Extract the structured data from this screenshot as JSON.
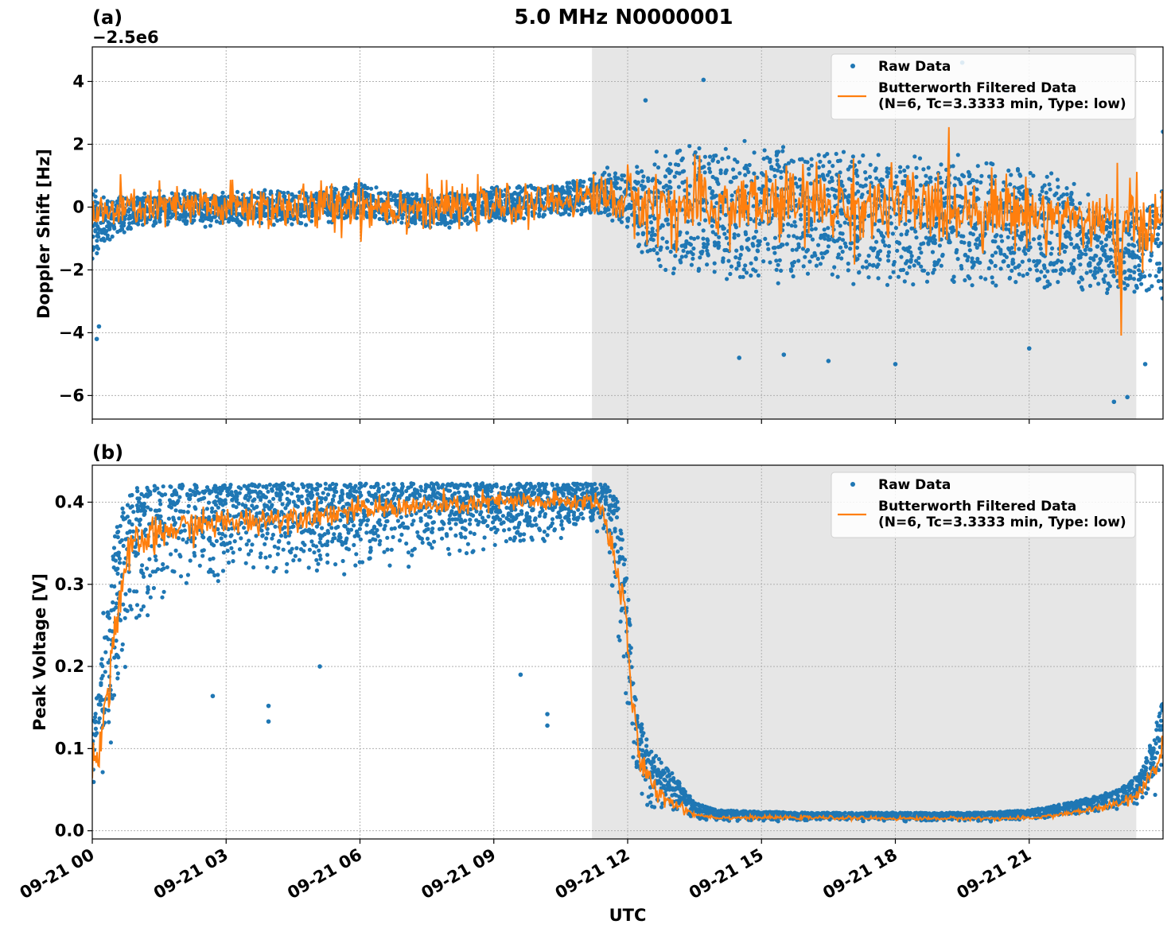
{
  "title": "5.0 MHz N0000001",
  "xlabel": "UTC",
  "colors": {
    "raw": "#1f77b4",
    "filtered": "#ff7f0e",
    "shade": "#e6e6e6",
    "grid": "#b0b0b0"
  },
  "chart_data": [
    {
      "type": "scatter",
      "panel_label": "(a)",
      "offset_label": "−2.5e6",
      "ylabel": "Doppler Shift [Hz]",
      "xlim_hours": [
        0,
        24
      ],
      "ylim": [
        -6.75,
        5.1
      ],
      "yticks": [
        4,
        2,
        0,
        -2,
        -4,
        -6
      ],
      "ytick_labels": [
        "4",
        "2",
        "0",
        "−2",
        "−4",
        "−6"
      ],
      "shaded_span_hours": [
        11.2,
        23.4
      ],
      "grid": true,
      "legend": {
        "placement": "top-right",
        "entries": [
          {
            "label": "Raw Data",
            "style": "marker",
            "series": "raw"
          },
          {
            "label": "Butterworth Filtered Data\n(N=6, Tc=3.3333 min, Type: low)",
            "style": "line",
            "series": "filtered"
          }
        ]
      },
      "series": [
        {
          "name": "Raw Data",
          "kind": "scatter",
          "envelope": {
            "x": [
              0,
              0.3,
              1,
              2,
              3,
              4,
              5,
              6,
              7,
              8,
              9,
              10,
              11,
              11.2,
              12,
              12.5,
              13,
              14,
              15,
              16,
              17,
              18,
              19,
              20,
              21,
              21.5,
              22,
              22.5,
              22.8,
              23,
              23.4,
              24
            ],
            "center": [
              -0.6,
              -0.4,
              -0.1,
              0.0,
              -0.1,
              0.0,
              0.0,
              0.2,
              -0.1,
              -0.1,
              0.1,
              0.2,
              0.3,
              0.5,
              0.3,
              -0.1,
              -0.1,
              0.0,
              -0.1,
              -0.2,
              -0.3,
              -0.4,
              -0.4,
              -0.5,
              -0.6,
              -0.7,
              -0.9,
              -1.1,
              -1.4,
              -1.6,
              -1.4,
              -1.2
            ],
            "spread": [
              1.4,
              0.8,
              0.6,
              0.6,
              0.6,
              0.6,
              0.6,
              0.6,
              0.6,
              0.6,
              0.6,
              0.6,
              0.6,
              0.7,
              1.1,
              1.9,
              2.2,
              2.3,
              2.3,
              2.3,
              2.3,
              2.3,
              2.3,
              2.2,
              2.1,
              2.0,
              1.8,
              1.6,
              1.5,
              1.5,
              1.7,
              1.9
            ]
          },
          "outliers": [
            {
              "x": 0.1,
              "y": -4.2
            },
            {
              "x": 0.15,
              "y": -3.8
            },
            {
              "x": 13.7,
              "y": 4.05
            },
            {
              "x": 22.9,
              "y": -6.2
            },
            {
              "x": 23.2,
              "y": -6.05
            },
            {
              "x": 19.5,
              "y": 4.6
            },
            {
              "x": 20.5,
              "y": 3.7
            },
            {
              "x": 14.5,
              "y": -4.8
            },
            {
              "x": 16.5,
              "y": -4.9
            },
            {
              "x": 18.0,
              "y": -5.0
            },
            {
              "x": 12.4,
              "y": 3.4
            },
            {
              "x": 15.5,
              "y": -4.7
            },
            {
              "x": 21.0,
              "y": -4.5
            },
            {
              "x": 23.6,
              "y": -5.0
            },
            {
              "x": 24.0,
              "y": 2.4
            }
          ]
        },
        {
          "name": "Butterworth Filtered Data (N=6, Tc=3.3333 min, Type: low)",
          "kind": "line",
          "envelope": {
            "x": [
              0,
              1,
              2,
              3,
              4,
              5,
              6,
              7,
              8,
              9,
              10,
              11,
              11.2,
              12,
              13,
              14,
              15,
              16,
              17,
              18,
              19,
              20,
              21,
              22,
              22.5,
              23,
              23.4,
              24
            ],
            "center": [
              -0.3,
              0.0,
              0.0,
              0.0,
              0.0,
              0.0,
              0.1,
              0.0,
              0.0,
              0.0,
              0.1,
              0.3,
              0.4,
              0.2,
              0.0,
              0.0,
              0.1,
              0.1,
              0.0,
              0.0,
              0.0,
              0.0,
              -0.2,
              -0.3,
              -0.5,
              -1.0,
              -0.6,
              -0.3
            ],
            "spread": [
              0.7,
              0.6,
              0.6,
              0.7,
              0.7,
              0.7,
              0.8,
              0.7,
              0.6,
              0.6,
              0.5,
              0.5,
              0.6,
              0.9,
              1.1,
              1.1,
              1.1,
              1.1,
              1.1,
              1.1,
              1.1,
              1.0,
              0.9,
              0.8,
              1.0,
              2.2,
              1.2,
              1.0
            ]
          }
        }
      ]
    },
    {
      "type": "scatter",
      "panel_label": "(b)",
      "ylabel": "Peak Voltage [V]",
      "xlim_hours": [
        0,
        24
      ],
      "ylim": [
        -0.01,
        0.445
      ],
      "yticks": [
        0.4,
        0.3,
        0.2,
        0.1,
        0.0
      ],
      "ytick_labels": [
        "0.4",
        "0.3",
        "0.2",
        "0.1",
        "0.0"
      ],
      "xticks_hours": [
        0,
        3,
        6,
        9,
        12,
        15,
        18,
        21
      ],
      "xtick_labels": [
        "09-21 00",
        "09-21 03",
        "09-21 06",
        "09-21 09",
        "09-21 12",
        "09-21 15",
        "09-21 18",
        "09-21 21"
      ],
      "shaded_span_hours": [
        11.2,
        23.4
      ],
      "grid": true,
      "legend": {
        "placement": "top-right",
        "entries": [
          {
            "label": "Raw Data",
            "style": "marker",
            "series": "raw"
          },
          {
            "label": "Butterworth Filtered Data\n(N=6, Tc=3.3333 min, Type: low)",
            "style": "line",
            "series": "filtered"
          }
        ]
      },
      "series": [
        {
          "name": "Raw Data",
          "kind": "scatter",
          "envelope": {
            "x": [
              0,
              0.3,
              0.5,
              0.7,
              1,
              2,
              3,
              4,
              5,
              6,
              7,
              8,
              9,
              10,
              11,
              11.5,
              11.8,
              12.0,
              12.2,
              12.5,
              13,
              13.5,
              14,
              16,
              18,
              20,
              21,
              22,
              23,
              23.5,
              23.8,
              24
            ],
            "top": [
              0.12,
              0.25,
              0.36,
              0.4,
              0.42,
              0.422,
              0.422,
              0.423,
              0.423,
              0.423,
              0.423,
              0.423,
              0.423,
              0.423,
              0.423,
              0.422,
              0.4,
              0.3,
              0.15,
              0.1,
              0.07,
              0.035,
              0.025,
              0.022,
              0.022,
              0.022,
              0.025,
              0.035,
              0.05,
              0.07,
              0.12,
              0.16
            ],
            "bottom": [
              0.04,
              0.05,
              0.08,
              0.16,
              0.22,
              0.27,
              0.3,
              0.3,
              0.3,
              0.3,
              0.32,
              0.33,
              0.34,
              0.34,
              0.36,
              0.35,
              0.2,
              0.1,
              0.03,
              0.02,
              0.015,
              0.012,
              0.011,
              0.011,
              0.011,
              0.011,
              0.012,
              0.018,
              0.025,
              0.03,
              0.035,
              0.04
            ]
          },
          "outliers": [
            {
              "x": 3.95,
              "y": 0.133
            },
            {
              "x": 10.2,
              "y": 0.128
            },
            {
              "x": 10.2,
              "y": 0.142
            },
            {
              "x": 2.7,
              "y": 0.164
            },
            {
              "x": 3.95,
              "y": 0.152
            },
            {
              "x": 5.1,
              "y": 0.2
            },
            {
              "x": 9.6,
              "y": 0.19
            },
            {
              "x": 0.25,
              "y": 0.265
            }
          ]
        },
        {
          "name": "Butterworth Filtered Data (N=6, Tc=3.3333 min, Type: low)",
          "kind": "line",
          "envelope": {
            "x": [
              0,
              0.2,
              0.4,
              0.6,
              0.8,
              1,
              1.5,
              2,
              3,
              4,
              5,
              6,
              7,
              8,
              9,
              10,
              11,
              11.3,
              11.6,
              11.9,
              12.1,
              12.3,
              12.6,
              13,
              13.5,
              14,
              16,
              18,
              20,
              21,
              22,
              23,
              23.5,
              24
            ],
            "center": [
              0.08,
              0.11,
              0.2,
              0.28,
              0.33,
              0.35,
              0.36,
              0.37,
              0.375,
              0.38,
              0.385,
              0.39,
              0.395,
              0.395,
              0.4,
              0.4,
              0.4,
              0.405,
              0.36,
              0.28,
              0.16,
              0.08,
              0.05,
              0.035,
              0.02,
              0.016,
              0.016,
              0.015,
              0.015,
              0.015,
              0.022,
              0.032,
              0.045,
              0.1
            ],
            "spread": [
              0.02,
              0.03,
              0.04,
              0.03,
              0.025,
              0.02,
              0.02,
              0.018,
              0.016,
              0.015,
              0.014,
              0.013,
              0.012,
              0.012,
              0.012,
              0.012,
              0.01,
              0.012,
              0.02,
              0.025,
              0.02,
              0.015,
              0.012,
              0.008,
              0.003,
              0.002,
              0.002,
              0.002,
              0.002,
              0.002,
              0.003,
              0.005,
              0.008,
              0.02
            ]
          }
        }
      ]
    }
  ]
}
